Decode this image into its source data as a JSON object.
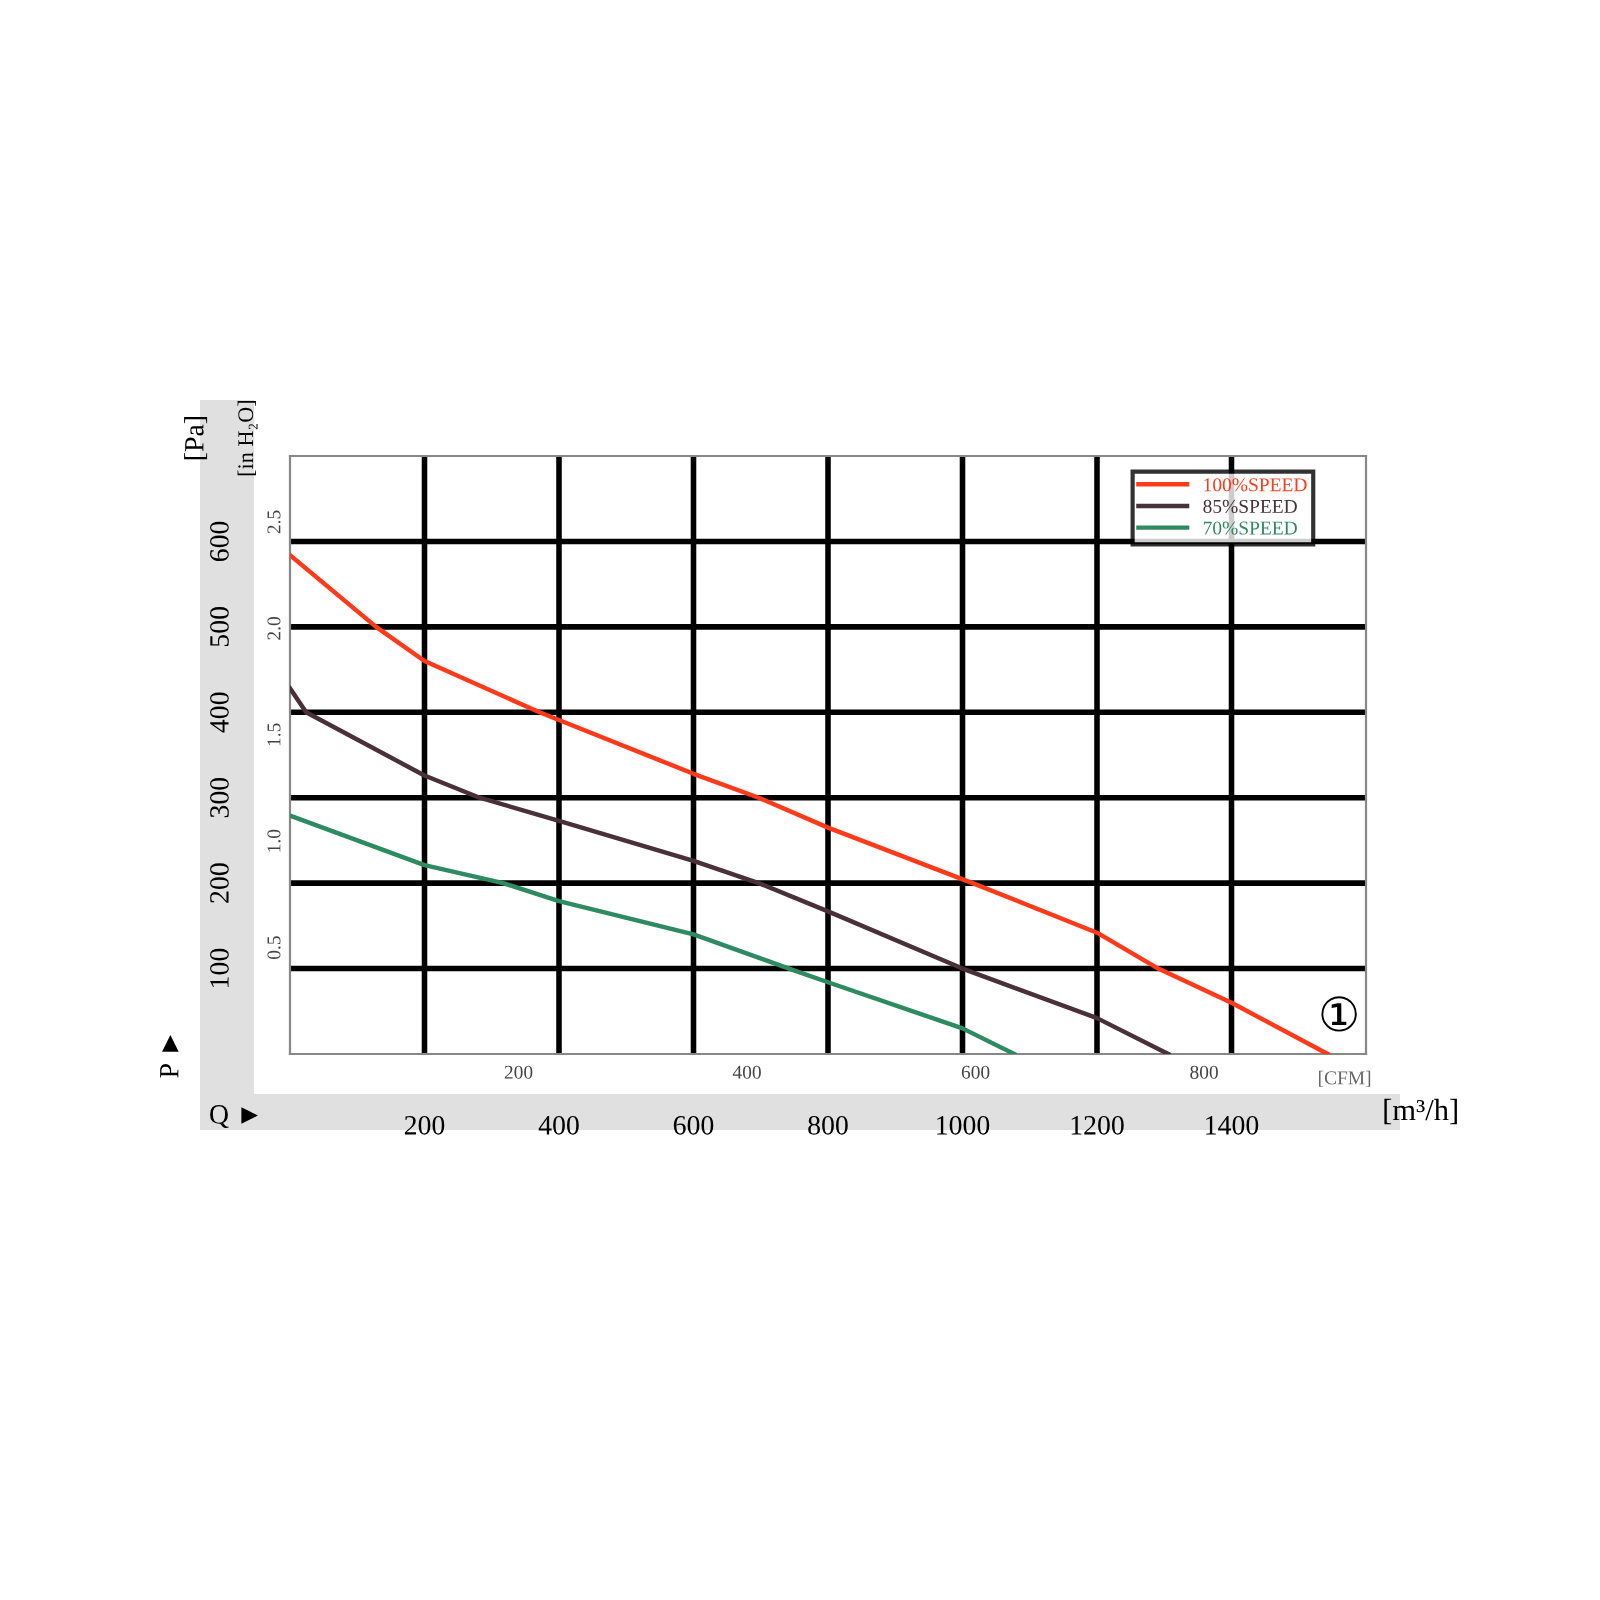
{
  "chart_data": {
    "type": "line",
    "xlabel": "[m³/h]",
    "ylabel": "[Pa]",
    "x2label": "[CFM]",
    "y2label": "[in H₂O]",
    "annotations": [
      "P ►",
      "Q ►",
      "①"
    ],
    "xlim": [
      0,
      1600
    ],
    "xticks": [
      200,
      400,
      600,
      800,
      1000,
      1200,
      1400
    ],
    "ylim": [
      0,
      700
    ],
    "yticks": [
      100,
      200,
      300,
      400,
      500,
      600
    ],
    "x2lim": [
      0,
      941.7
    ],
    "x2ticks": [
      200,
      400,
      600,
      800
    ],
    "y2lim": [
      0,
      2.81
    ],
    "y2ticks": [
      {
        "value": 0.5,
        "label": "0.5"
      },
      {
        "value": 1.0,
        "label": "1.0"
      },
      {
        "value": 1.5,
        "label": "1.5"
      },
      {
        "value": 2.0,
        "label": "2.0"
      },
      {
        "value": 2.5,
        "label": "2.5"
      }
    ],
    "grid": true,
    "legend": "top right",
    "line_style": "solid",
    "marker": "none",
    "series": [
      {
        "name": "100%SPEED",
        "color": "#ff3a1a",
        "x": [
          0,
          128,
          200,
          371,
          600,
          697,
          800,
          1015,
          1200,
          1291,
          1400,
          1543
        ],
        "values": [
          584,
          500,
          460,
          400,
          328,
          300,
          265,
          200,
          142,
          100,
          60,
          0
        ]
      },
      {
        "name": "85%SPEED",
        "color": "#4a3038",
        "x": [
          0,
          24,
          200,
          282,
          400,
          600,
          697,
          800,
          1000,
          1200,
          1306
        ],
        "values": [
          428,
          400,
          326,
          300,
          273,
          226,
          200,
          167,
          100,
          42,
          0
        ]
      },
      {
        "name": "70%SPEED",
        "color": "#2e8a60",
        "x": [
          0,
          200,
          317,
          400,
          600,
          742,
          800,
          1000,
          1077
        ],
        "values": [
          279,
          221,
          200,
          179,
          140,
          100,
          84,
          30,
          0
        ]
      }
    ]
  }
}
